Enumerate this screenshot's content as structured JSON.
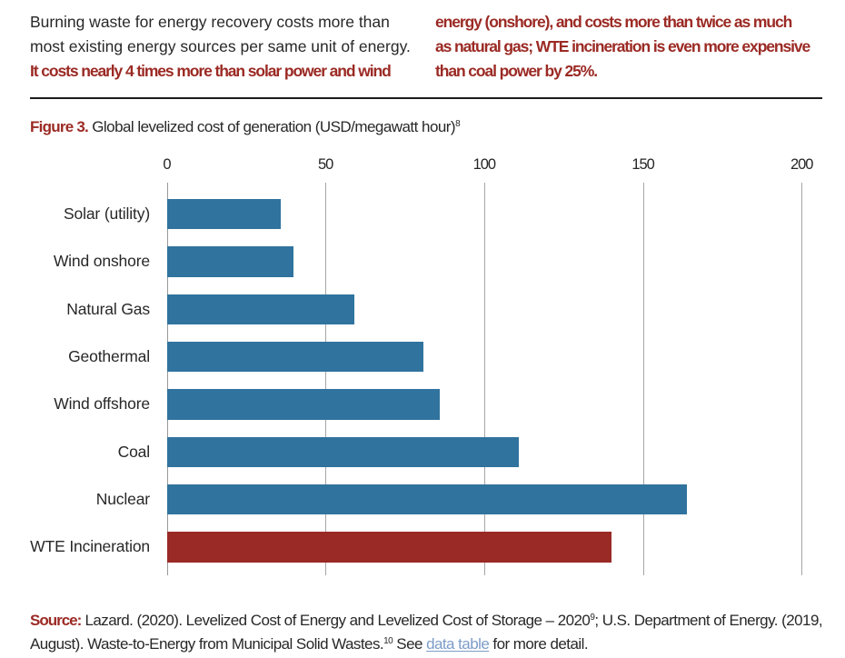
{
  "intro": {
    "left_normal_lines": [
      "Burning waste for energy recovery costs more than",
      "most existing energy sources per same unit of energy."
    ],
    "left_red_lines": [
      "It costs nearly 4 times more than solar power and wind"
    ],
    "right_red_lines": [
      "energy (onshore), and costs more than twice as much",
      "as natural gas; WTE incineration is even more expensive",
      "than coal power by 25%."
    ]
  },
  "figure": {
    "label": "Figure 3.",
    "title": " Global levelized cost of generation (USD/megawatt hour)",
    "title_superscript": "8"
  },
  "chart_data": {
    "type": "bar",
    "orientation": "horizontal",
    "title": "Global levelized cost of generation (USD/megawatt hour)",
    "xlabel": "",
    "ylabel": "",
    "xlim": [
      0,
      200
    ],
    "x_ticks": [
      0,
      50,
      100,
      150,
      200
    ],
    "grid": "vertical",
    "legend": "none",
    "categories": [
      "Solar (utility)",
      "Wind onshore",
      "Natural Gas",
      "Geothermal",
      "Wind offshore",
      "Coal",
      "Nuclear",
      "WTE Incineration"
    ],
    "values": [
      36,
      40,
      59,
      81,
      86,
      111,
      164,
      140
    ],
    "unit": "USD/megawatt hour",
    "colors": {
      "default_bar": "#30739e",
      "highlight_bar": "#992a26",
      "highlight_category": "WTE Incineration"
    }
  },
  "source": {
    "label": "Source:",
    "seg1": " Lazard. (2020). Levelized Cost of Energy and Levelized Cost of Storage – 2020",
    "sup1": "9",
    "seg2": "; U.S. Department of Energy. (2019, August). Waste-to-Energy from Municipal Solid Wastes.",
    "sup2": "10",
    "seg3": " See ",
    "link_text": "data table",
    "seg4": " for more detail."
  },
  "colors": {
    "accent_red": "#9b2a24",
    "bar_blue": "#30739e",
    "bar_red": "#992a26",
    "text": "#282828",
    "gridline": "#a6a6a6",
    "link_blue": "#7d9cc9",
    "rule_black": "#1c1c1c"
  }
}
